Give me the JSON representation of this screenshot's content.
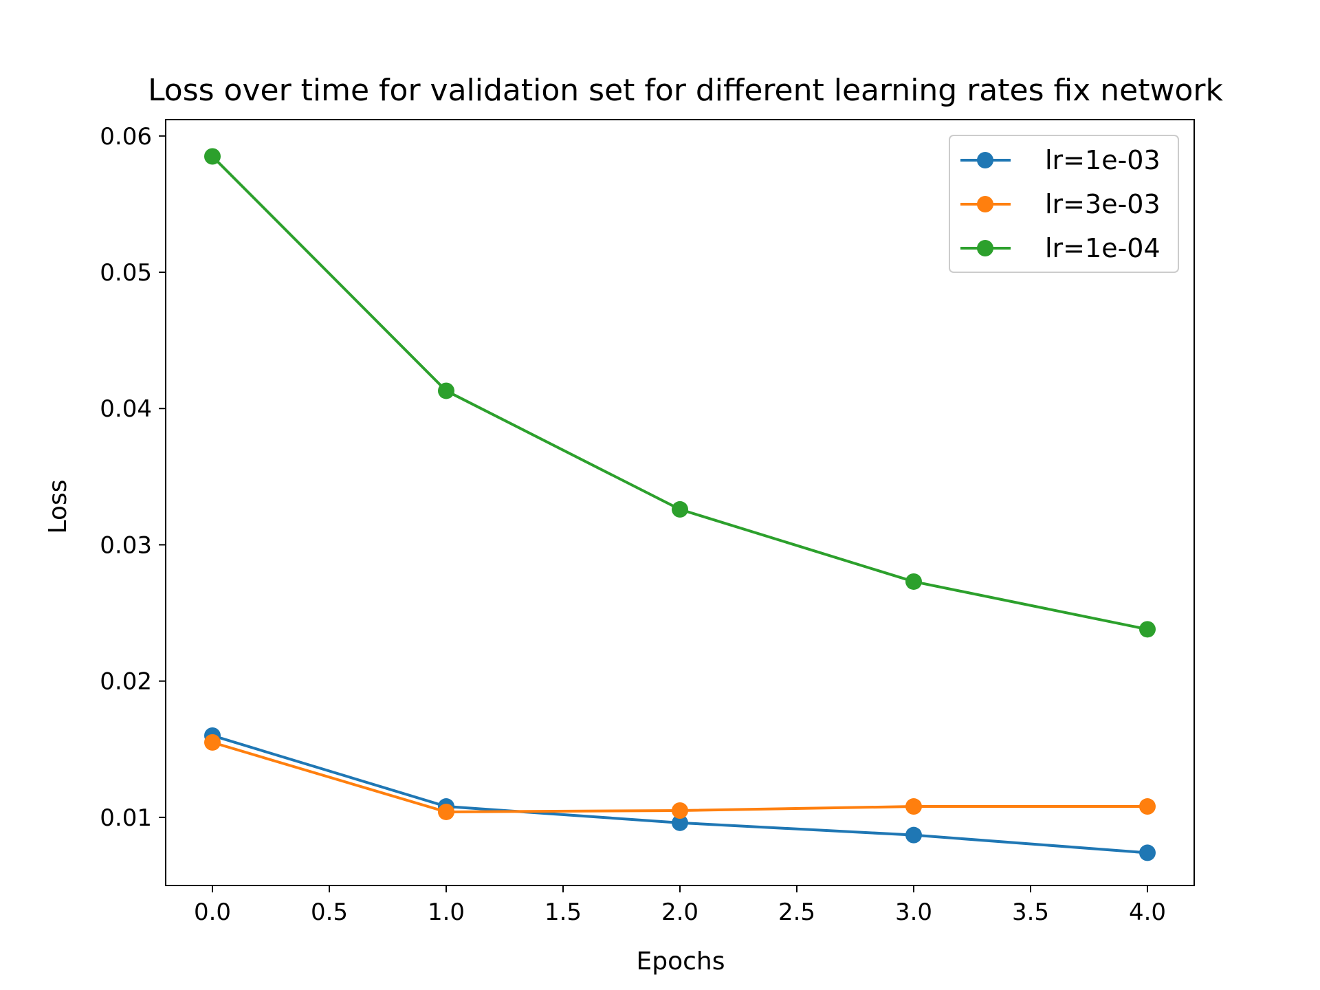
{
  "chart_data": {
    "type": "line",
    "title": "Loss over time for validation set for different learning rates fix network",
    "xlabel": "Epochs",
    "ylabel": "Loss",
    "x": [
      0,
      1,
      2,
      3,
      4
    ],
    "xlim": [
      -0.2,
      4.2
    ],
    "ylim": [
      0.005,
      0.0612
    ],
    "xticks": [
      "0.0",
      "0.5",
      "1.0",
      "1.5",
      "2.0",
      "2.5",
      "3.0",
      "3.5",
      "4.0"
    ],
    "yticks": [
      "0.01",
      "0.02",
      "0.03",
      "0.04",
      "0.05",
      "0.06"
    ],
    "grid": false,
    "legend_position": "top-right",
    "series": [
      {
        "name": "lr=1e-03",
        "color": "#1f77b4",
        "values": [
          0.016,
          0.0108,
          0.0096,
          0.0087,
          0.0074
        ]
      },
      {
        "name": "lr=3e-03",
        "color": "#ff7f0e",
        "values": [
          0.0155,
          0.0104,
          0.0105,
          0.0108,
          0.0108
        ]
      },
      {
        "name": "lr=1e-04",
        "color": "#2ca02c",
        "values": [
          0.0585,
          0.0413,
          0.0326,
          0.0273,
          0.0238
        ]
      }
    ]
  }
}
